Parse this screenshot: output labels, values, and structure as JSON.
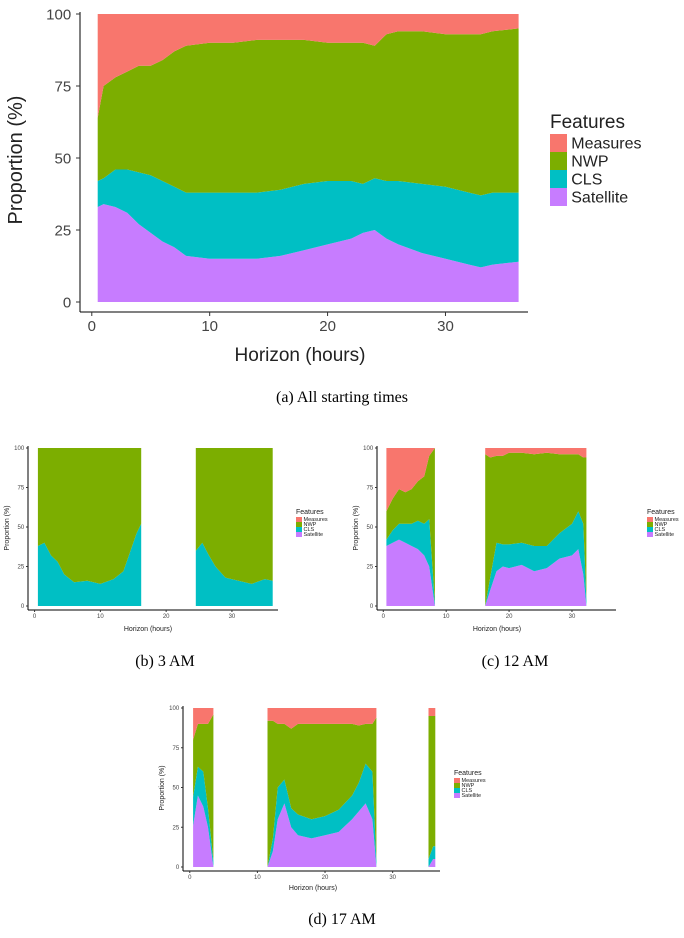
{
  "colors": {
    "Measures": "#f8766d",
    "NWP": "#7cae00",
    "CLS": "#00bfc4",
    "Satellite": "#c77cff"
  },
  "chart_data": [
    {
      "type": "area",
      "caption": "(a) All starting times",
      "xlabel": "Horizon (hours)",
      "ylabel": "Proportion (%)",
      "xlim": [
        -1,
        37
      ],
      "ylim": [
        0,
        100
      ],
      "xticks": [
        0,
        10,
        20,
        30
      ],
      "yticks": [
        0,
        25,
        50,
        75,
        100
      ],
      "legend_title": "Features",
      "legend": [
        "Measures",
        "NWP",
        "CLS",
        "Satellite"
      ],
      "segments": [
        {
          "x": [
            0.5,
            1,
            2,
            3,
            4,
            5,
            6,
            7,
            8,
            10,
            12,
            14,
            16,
            18,
            20,
            22,
            23,
            24,
            25,
            26,
            28,
            30,
            32,
            33,
            34,
            36.2
          ],
          "series": [
            {
              "name": "Satellite",
              "values": [
                33,
                34,
                33,
                31,
                27,
                24,
                21,
                19,
                16,
                15,
                15,
                15,
                16,
                18,
                20,
                22,
                24,
                25,
                22,
                20,
                17,
                15,
                13,
                12,
                13,
                14
              ]
            },
            {
              "name": "CLS",
              "values": [
                9,
                9,
                13,
                15,
                18,
                20,
                21,
                21,
                22,
                23,
                23,
                23,
                23,
                23,
                22,
                20,
                17,
                18,
                20,
                22,
                24,
                25,
                25,
                25,
                25,
                24
              ]
            },
            {
              "name": "NWP",
              "values": [
                22,
                32,
                32,
                34,
                37,
                38,
                42,
                47,
                51,
                52,
                52,
                53,
                52,
                50,
                48,
                48,
                49,
                46,
                51,
                52,
                53,
                53,
                55,
                56,
                56,
                57
              ]
            },
            {
              "name": "Measures",
              "values": [
                36,
                25,
                22,
                20,
                18,
                18,
                16,
                13,
                11,
                10,
                10,
                9,
                9,
                9,
                10,
                10,
                10,
                11,
                7,
                6,
                6,
                7,
                7,
                7,
                6,
                5
              ]
            }
          ]
        }
      ]
    },
    {
      "type": "area",
      "caption": "(b) 3 AM",
      "xlabel": "Horizon (hours)",
      "ylabel": "Proportion (%)",
      "xlim": [
        -1,
        37
      ],
      "ylim": [
        0,
        100
      ],
      "xticks": [
        0,
        10,
        20,
        30
      ],
      "yticks": [
        0,
        25,
        50,
        75,
        100
      ],
      "legend_title": "Features",
      "legend": [
        "Measures",
        "NWP",
        "CLS",
        "Satellite"
      ],
      "segments": [
        {
          "x": [
            0.5,
            1.5,
            2.5,
            3.5,
            4.5,
            6,
            8,
            10,
            12,
            13.5,
            14.5,
            15.5,
            16.2
          ],
          "series": [
            {
              "name": "Satellite",
              "values": [
                0,
                0,
                0,
                0,
                0,
                0,
                0,
                0,
                0,
                0,
                0,
                0,
                0
              ]
            },
            {
              "name": "CLS",
              "values": [
                38,
                40,
                32,
                28,
                20,
                15,
                16,
                14,
                17,
                22,
                34,
                46,
                52
              ]
            },
            {
              "name": "NWP",
              "values": [
                62,
                60,
                68,
                72,
                80,
                85,
                84,
                86,
                83,
                78,
                66,
                54,
                48
              ]
            },
            {
              "name": "Measures",
              "values": [
                0,
                0,
                0,
                0,
                0,
                0,
                0,
                0,
                0,
                0,
                0,
                0,
                0
              ]
            }
          ]
        },
        {
          "x": [
            24.5,
            25.5,
            26.5,
            27.5,
            29,
            31,
            33,
            35,
            36.2
          ],
          "series": [
            {
              "name": "Satellite",
              "values": [
                0,
                0,
                0,
                0,
                0,
                0,
                0,
                0,
                0
              ]
            },
            {
              "name": "CLS",
              "values": [
                35,
                40,
                32,
                25,
                18,
                16,
                14,
                17,
                16
              ]
            },
            {
              "name": "NWP",
              "values": [
                65,
                60,
                68,
                75,
                82,
                84,
                86,
                83,
                84
              ]
            },
            {
              "name": "Measures",
              "values": [
                0,
                0,
                0,
                0,
                0,
                0,
                0,
                0,
                0
              ]
            }
          ]
        }
      ]
    },
    {
      "type": "area",
      "caption": "(c) 12 AM",
      "xlabel": "Horizon (hours)",
      "ylabel": "Proportion (%)",
      "xlim": [
        -1,
        37
      ],
      "ylim": [
        0,
        100
      ],
      "xticks": [
        0,
        10,
        20,
        30
      ],
      "yticks": [
        0,
        25,
        50,
        75,
        100
      ],
      "legend_title": "Features",
      "legend": [
        "Measures",
        "NWP",
        "CLS",
        "Satellite"
      ],
      "segments": [
        {
          "x": [
            0.5,
            1.5,
            2.5,
            3.5,
            4.5,
            5.5,
            6.5,
            7.3,
            8.2
          ],
          "series": [
            {
              "name": "Satellite",
              "values": [
                38,
                40,
                42,
                40,
                38,
                36,
                32,
                25,
                0
              ]
            },
            {
              "name": "CLS",
              "values": [
                4,
                8,
                10,
                12,
                14,
                18,
                20,
                30,
                2
              ]
            },
            {
              "name": "NWP",
              "values": [
                18,
                20,
                22,
                20,
                22,
                25,
                30,
                40,
                98
              ]
            },
            {
              "name": "Measures",
              "values": [
                40,
                32,
                26,
                28,
                26,
                21,
                18,
                5,
                0
              ]
            }
          ]
        },
        {
          "x": [
            16.2,
            17,
            18,
            19,
            20,
            22,
            24,
            26,
            28,
            30,
            31,
            31.8,
            32.3
          ],
          "series": [
            {
              "name": "Satellite",
              "values": [
                0,
                10,
                22,
                25,
                24,
                26,
                22,
                24,
                30,
                32,
                36,
                20,
                0
              ]
            },
            {
              "name": "CLS",
              "values": [
                0,
                8,
                18,
                14,
                15,
                14,
                16,
                14,
                16,
                20,
                24,
                32,
                4
              ]
            },
            {
              "name": "NWP",
              "values": [
                96,
                76,
                55,
                56,
                58,
                57,
                58,
                59,
                50,
                44,
                36,
                42,
                90
              ]
            },
            {
              "name": "Measures",
              "values": [
                4,
                6,
                5,
                5,
                3,
                3,
                4,
                3,
                4,
                4,
                4,
                6,
                6
              ]
            }
          ]
        }
      ]
    },
    {
      "type": "area",
      "caption": "(d) 17 AM",
      "xlabel": "Horizon (hours)",
      "ylabel": "Proportion (%)",
      "xlim": [
        -1,
        37
      ],
      "ylim": [
        0,
        100
      ],
      "xticks": [
        0,
        10,
        20,
        30
      ],
      "yticks": [
        0,
        25,
        50,
        75,
        100
      ],
      "legend_title": "Features",
      "legend": [
        "Measures",
        "NWP",
        "CLS",
        "Satellite"
      ],
      "segments": [
        {
          "x": [
            0.5,
            1.2,
            2,
            2.7,
            3.5
          ],
          "series": [
            {
              "name": "Satellite",
              "values": [
                26,
                45,
                38,
                25,
                0
              ]
            },
            {
              "name": "CLS",
              "values": [
                18,
                18,
                22,
                12,
                4
              ]
            },
            {
              "name": "NWP",
              "values": [
                36,
                27,
                30,
                53,
                92
              ]
            },
            {
              "name": "Measures",
              "values": [
                20,
                10,
                10,
                10,
                4
              ]
            }
          ]
        },
        {
          "x": [
            11.5,
            12.3,
            13,
            14,
            15,
            16,
            18,
            20,
            22,
            24,
            25,
            26,
            27,
            27.6
          ],
          "series": [
            {
              "name": "Satellite",
              "values": [
                0,
                10,
                30,
                40,
                25,
                20,
                18,
                20,
                22,
                30,
                35,
                40,
                30,
                0
              ]
            },
            {
              "name": "CLS",
              "values": [
                0,
                8,
                20,
                15,
                12,
                13,
                12,
                12,
                14,
                15,
                18,
                25,
                30,
                4
              ]
            },
            {
              "name": "NWP",
              "values": [
                92,
                74,
                40,
                35,
                50,
                57,
                60,
                58,
                54,
                45,
                36,
                25,
                30,
                90
              ]
            },
            {
              "name": "Measures",
              "values": [
                8,
                8,
                10,
                10,
                13,
                10,
                10,
                10,
                10,
                10,
                11,
                10,
                10,
                6
              ]
            }
          ]
        },
        {
          "x": [
            35.3,
            36,
            36.3
          ],
          "series": [
            {
              "name": "Satellite",
              "values": [
                0,
                5,
                5
              ]
            },
            {
              "name": "CLS",
              "values": [
                5,
                8,
                8
              ]
            },
            {
              "name": "NWP",
              "values": [
                90,
                82,
                82
              ]
            },
            {
              "name": "Measures",
              "values": [
                5,
                5,
                5
              ]
            }
          ]
        }
      ]
    }
  ]
}
